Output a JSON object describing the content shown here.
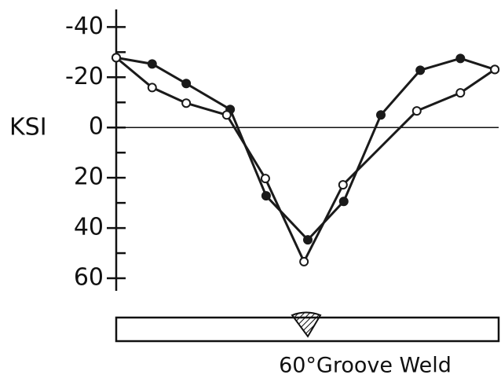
{
  "chart_data": {
    "type": "line",
    "ylabel": "KSI",
    "caption": "60°Groove Weld",
    "xlim": [
      0,
      100
    ],
    "ylim": [
      65,
      -47
    ],
    "inverted_y": true,
    "yticks": [
      -40,
      -20,
      0,
      20,
      40,
      60
    ],
    "yticks_minor": [
      -30,
      -10,
      10,
      30,
      50
    ],
    "zero_line": true,
    "series": [
      {
        "color": "#1a1a1a",
        "marker_fill": "#1a1a1a",
        "x": [
          0,
          9.4,
          18.3,
          29.8,
          39.2,
          50.1,
          59.5,
          69.2,
          79.5,
          90.0,
          99.0
        ],
        "values": [
          -27.8,
          -25.3,
          -17.5,
          -7.2,
          27.2,
          44.7,
          29.4,
          -5.0,
          -22.8,
          -27.5,
          -23.1
        ]
      },
      {
        "color": "#1a1a1a",
        "marker_fill": "#ffffff",
        "x": [
          0,
          9.4,
          18.3,
          28.9,
          39.0,
          49.1,
          59.3,
          78.6,
          90.0,
          99.0
        ],
        "values": [
          -27.8,
          -15.9,
          -9.7,
          -5.0,
          20.3,
          53.4,
          22.8,
          -6.6,
          -13.8,
          -23.1
        ]
      }
    ]
  }
}
